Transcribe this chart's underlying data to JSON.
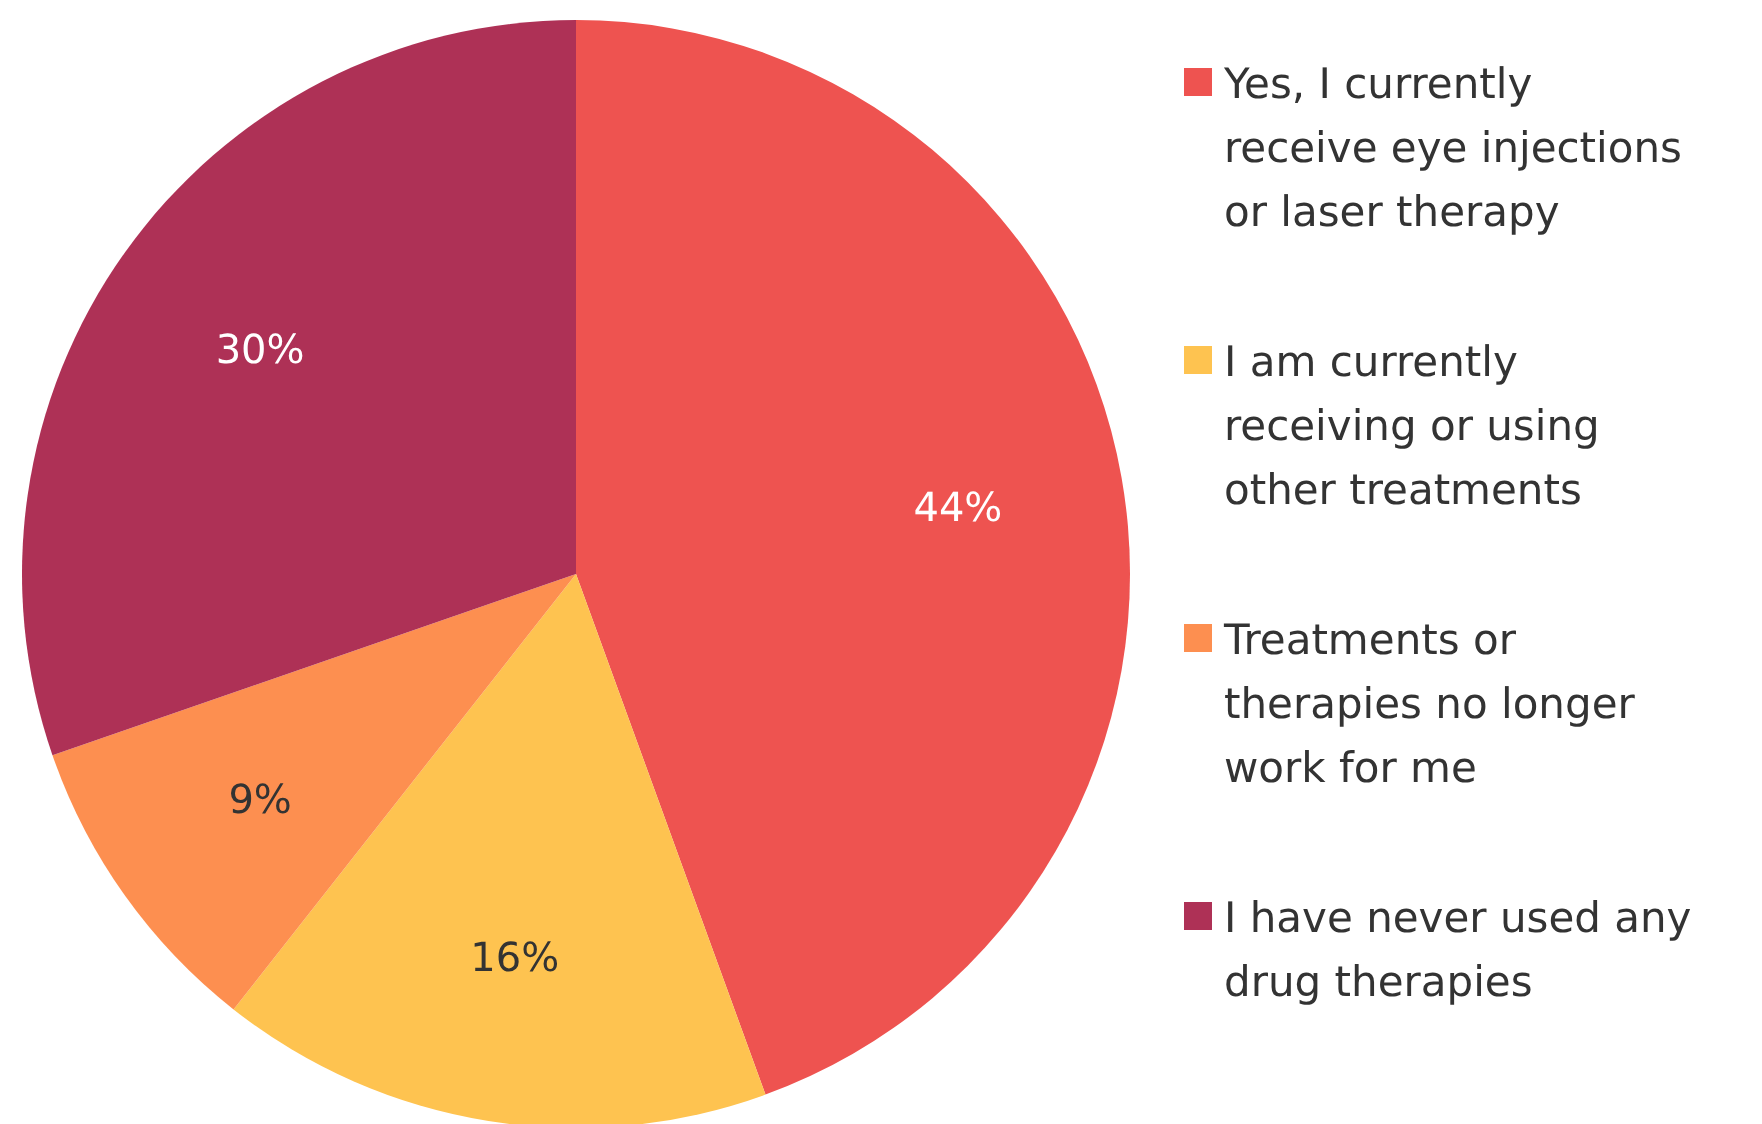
{
  "chart_data": {
    "type": "pie",
    "categories": [
      "Yes, I currently receive eye injections or laser therapy",
      "I am currently receiving or using other treatments",
      "Treatments or therapies no longer work for me",
      "I have never used any drug therapies"
    ],
    "values": [
      44,
      16,
      9,
      30
    ],
    "colors": [
      "#ee5350",
      "#fec350",
      "#fd8f50",
      "#ae3156"
    ],
    "value_labels": [
      "44%",
      "16%",
      "9%",
      "30%"
    ],
    "legend": "right"
  }
}
